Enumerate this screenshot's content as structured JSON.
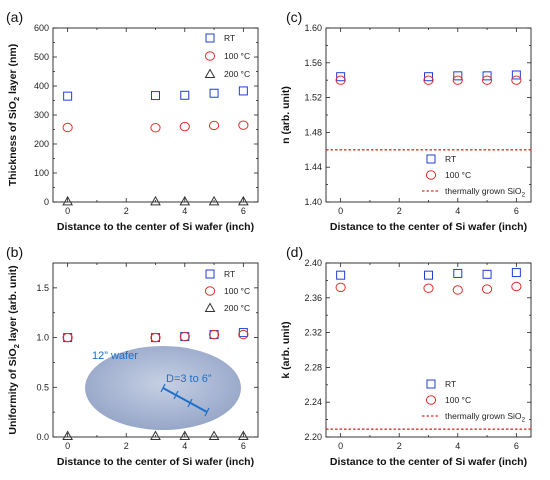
{
  "chart_data": [
    {
      "id": "a",
      "panel_label": "(a)",
      "type": "scatter",
      "ylabel_pre": "Thickness of SiO",
      "ylabel_sub": "2",
      "ylabel_post": " layer (nm)",
      "xlabel": "Distance to the center of Si wafer (inch)",
      "xlim": [
        -0.5,
        6.5
      ],
      "ylim": [
        0,
        600
      ],
      "xticks": [
        0,
        2,
        4,
        6
      ],
      "yticks": [
        0,
        100,
        200,
        300,
        400,
        500,
        600
      ],
      "ytick_labels": [
        "0",
        "100",
        "200",
        "300",
        "400",
        "500",
        "600"
      ],
      "x": [
        0,
        3,
        4,
        5,
        6
      ],
      "series": [
        {
          "name": "RT",
          "marker": "square",
          "color": "#1f3fd6",
          "values": [
            365,
            367,
            368,
            375,
            383
          ]
        },
        {
          "name": "100 °C",
          "marker": "circle",
          "color": "#e0302a",
          "values": [
            257,
            256,
            260,
            264,
            265
          ]
        },
        {
          "name": "200 °C",
          "marker": "triangle",
          "color": "#333333",
          "values": [
            2,
            2,
            2,
            2,
            2
          ]
        }
      ],
      "legend_position": "top-right"
    },
    {
      "id": "b",
      "panel_label": "(b)",
      "type": "scatter",
      "ylabel_pre": "Uniformity of SiO",
      "ylabel_sub": "2",
      "ylabel_post": " layer (arb. unit)",
      "xlabel": "Distance to the center of Si wafer (inch)",
      "xlim": [
        -0.5,
        6.5
      ],
      "ylim": [
        0,
        1.75
      ],
      "xticks": [
        0,
        2,
        4,
        6
      ],
      "yticks": [
        0,
        0.5,
        1.0,
        1.5
      ],
      "ytick_labels": [
        "0.0",
        "0.5",
        "1.0",
        "1.5"
      ],
      "x": [
        0,
        3,
        4,
        5,
        6
      ],
      "series": [
        {
          "name": "RT",
          "marker": "square",
          "color": "#1f3fd6",
          "values": [
            1.0,
            1.0,
            1.01,
            1.03,
            1.05
          ]
        },
        {
          "name": "100 °C",
          "marker": "circle",
          "color": "#e0302a",
          "values": [
            1.0,
            1.0,
            1.01,
            1.03,
            1.03
          ]
        },
        {
          "name": "200 °C",
          "marker": "triangle",
          "color": "#333333",
          "values": [
            0.01,
            0.01,
            0.01,
            0.01,
            0.01
          ]
        }
      ],
      "legend_position": "top-right",
      "inset": {
        "wafer_label": "12” wafer",
        "range_label": "D=3 to 6”"
      }
    },
    {
      "id": "c",
      "panel_label": "(c)",
      "type": "scatter",
      "ylabel": "n (arb. unit)",
      "xlabel": "Distance to the center of Si wafer (inch)",
      "xlim": [
        -0.5,
        6.5
      ],
      "ylim": [
        1.4,
        1.6
      ],
      "xticks": [
        0,
        2,
        4,
        6
      ],
      "yticks": [
        1.4,
        1.44,
        1.48,
        1.52,
        1.56,
        1.6
      ],
      "ytick_labels": [
        "1.40",
        "1.44",
        "1.48",
        "1.52",
        "1.56",
        "1.60"
      ],
      "x": [
        0,
        3,
        4,
        5,
        6
      ],
      "series": [
        {
          "name": "RT",
          "marker": "square",
          "color": "#1f3fd6",
          "values": [
            1.544,
            1.544,
            1.545,
            1.545,
            1.546
          ]
        },
        {
          "name": "100 °C",
          "marker": "circle",
          "color": "#e0302a",
          "values": [
            1.54,
            1.54,
            1.54,
            1.54,
            1.54
          ]
        }
      ],
      "reference_line": {
        "label_pre": "thermally grown SiO",
        "label_sub": "2",
        "y": 1.46,
        "color": "#e0302a"
      },
      "legend_position": "lower-right"
    },
    {
      "id": "d",
      "panel_label": "(d)",
      "type": "scatter",
      "ylabel": "k (arb. unit)",
      "xlabel": "Distance to the center of Si wafer (inch)",
      "xlim": [
        -0.5,
        6.5
      ],
      "ylim": [
        2.2,
        2.4
      ],
      "xticks": [
        0,
        2,
        4,
        6
      ],
      "yticks": [
        2.2,
        2.24,
        2.28,
        2.32,
        2.36,
        2.4
      ],
      "ytick_labels": [
        "2.20",
        "2.24",
        "2.28",
        "2.32",
        "2.36",
        "2.40"
      ],
      "x": [
        0,
        3,
        4,
        5,
        6
      ],
      "series": [
        {
          "name": "RT",
          "marker": "square",
          "color": "#1f3fd6",
          "values": [
            2.386,
            2.386,
            2.388,
            2.387,
            2.389
          ]
        },
        {
          "name": "100 °C",
          "marker": "circle",
          "color": "#e0302a",
          "values": [
            2.372,
            2.371,
            2.369,
            2.37,
            2.373
          ]
        }
      ],
      "reference_line": {
        "label_pre": "thermally grown SiO",
        "label_sub": "2",
        "y": 2.209,
        "color": "#e0302a"
      },
      "legend_position": "lower-right"
    }
  ]
}
